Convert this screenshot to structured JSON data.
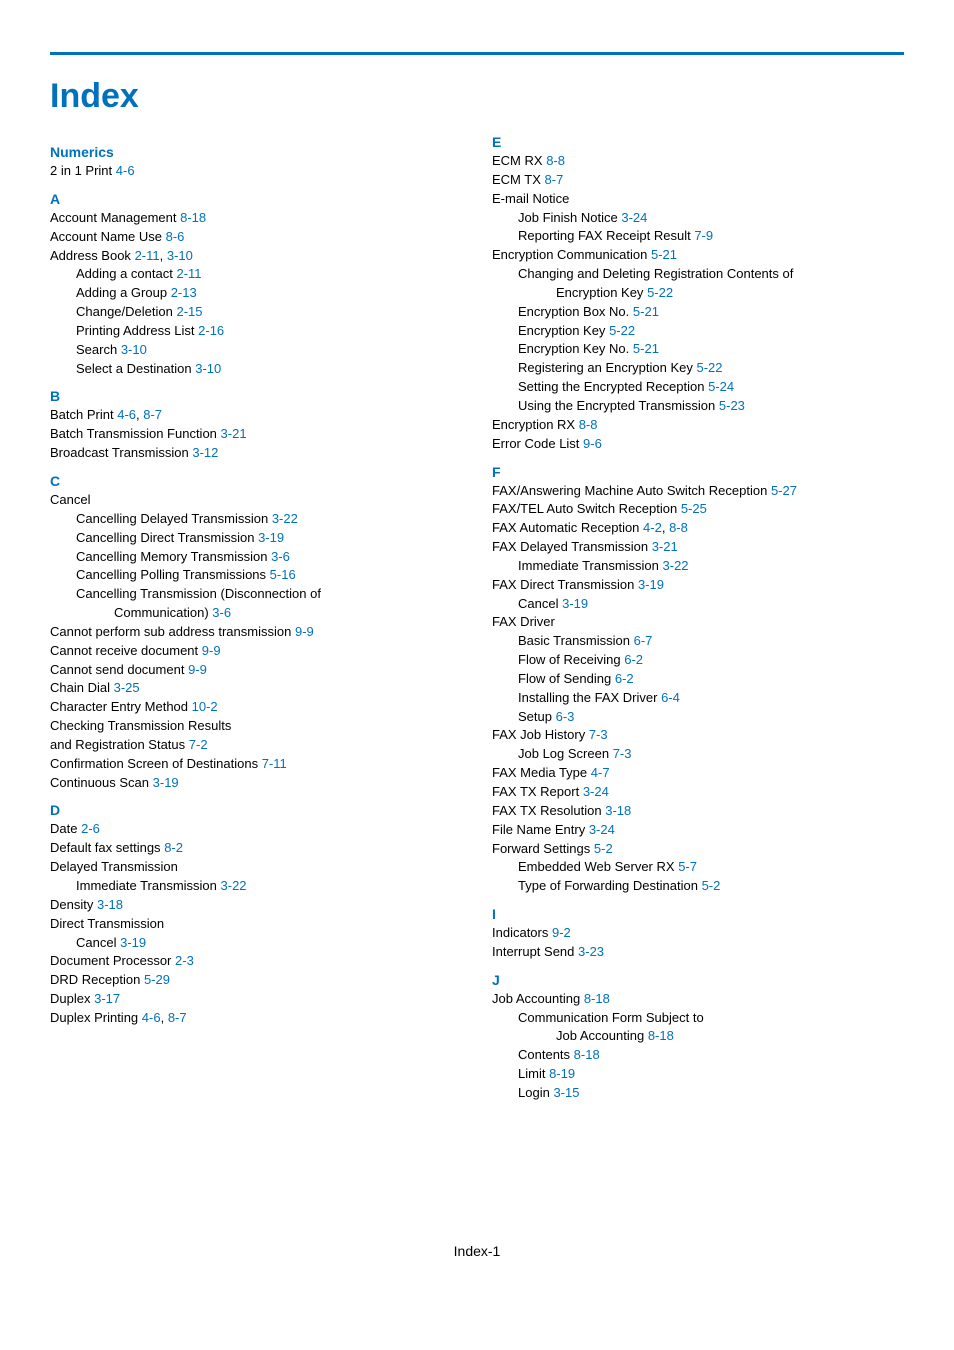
{
  "title": "Index",
  "footer": "Index-1",
  "colors": {
    "accent": "#0071bc",
    "text": "#000000",
    "background": "#ffffff"
  },
  "typography": {
    "base_font": "Arial",
    "base_size_pt": 10,
    "title_size_pt": 26,
    "head_size_pt": 11
  },
  "columns": [
    {
      "sections": [
        {
          "head": "Numerics",
          "entries": [
            {
              "lvl": 0,
              "label": "2 in 1 Print",
              "refs": [
                "4-6"
              ]
            }
          ]
        },
        {
          "head": "A",
          "entries": [
            {
              "lvl": 0,
              "label": "Account Management",
              "refs": [
                "8-18"
              ]
            },
            {
              "lvl": 0,
              "label": "Account Name Use",
              "refs": [
                "8-6"
              ]
            },
            {
              "lvl": 0,
              "label": "Address Book",
              "refs": [
                "2-11",
                "3-10"
              ]
            },
            {
              "lvl": 1,
              "label": "Adding a contact",
              "refs": [
                "2-11"
              ]
            },
            {
              "lvl": 1,
              "label": "Adding a Group",
              "refs": [
                "2-13"
              ]
            },
            {
              "lvl": 1,
              "label": "Change/Deletion",
              "refs": [
                "2-15"
              ]
            },
            {
              "lvl": 1,
              "label": "Printing Address List",
              "refs": [
                "2-16"
              ]
            },
            {
              "lvl": 1,
              "label": "Search",
              "refs": [
                "3-10"
              ]
            },
            {
              "lvl": 1,
              "label": "Select a Destination",
              "refs": [
                "3-10"
              ]
            }
          ]
        },
        {
          "head": "B",
          "entries": [
            {
              "lvl": 0,
              "label": "Batch Print",
              "refs": [
                "4-6",
                "8-7"
              ]
            },
            {
              "lvl": 0,
              "label": "Batch Transmission Function",
              "refs": [
                "3-21"
              ]
            },
            {
              "lvl": 0,
              "label": "Broadcast Transmission",
              "refs": [
                "3-12"
              ]
            }
          ]
        },
        {
          "head": "C",
          "entries": [
            {
              "lvl": 0,
              "label": "Cancel",
              "refs": []
            },
            {
              "lvl": 1,
              "label": "Cancelling Delayed Transmission",
              "refs": [
                "3-22"
              ]
            },
            {
              "lvl": 1,
              "label": "Cancelling Direct Transmission",
              "refs": [
                "3-19"
              ]
            },
            {
              "lvl": 1,
              "label": "Cancelling Memory Transmission",
              "refs": [
                "3-6"
              ]
            },
            {
              "lvl": 1,
              "label": "Cancelling Polling Transmissions",
              "refs": [
                "5-16"
              ]
            },
            {
              "lvl": 1,
              "label": "Cancelling Transmission (Disconnection of",
              "refs": []
            },
            {
              "lvl": 2,
              "label": "Communication)",
              "refs": [
                "3-6"
              ]
            },
            {
              "lvl": 0,
              "label": "Cannot perform sub address transmission",
              "refs": [
                "9-9"
              ]
            },
            {
              "lvl": 0,
              "label": "Cannot receive document",
              "refs": [
                "9-9"
              ]
            },
            {
              "lvl": 0,
              "label": "Cannot send document",
              "refs": [
                "9-9"
              ]
            },
            {
              "lvl": 0,
              "label": "Chain Dial",
              "refs": [
                "3-25"
              ]
            },
            {
              "lvl": 0,
              "label": "Character Entry Method",
              "refs": [
                "10-2"
              ]
            },
            {
              "lvl": 0,
              "label": "Checking Transmission Results",
              "refs": []
            },
            {
              "lvl": 0,
              "label": "and Registration Status",
              "refs": [
                "7-2"
              ]
            },
            {
              "lvl": 0,
              "label": "Confirmation Screen of Destinations",
              "refs": [
                "7-11"
              ]
            },
            {
              "lvl": 0,
              "label": "Continuous Scan",
              "refs": [
                "3-19"
              ]
            }
          ]
        },
        {
          "head": "D",
          "entries": [
            {
              "lvl": 0,
              "label": "Date",
              "refs": [
                "2-6"
              ]
            },
            {
              "lvl": 0,
              "label": "Default fax settings",
              "refs": [
                "8-2"
              ]
            },
            {
              "lvl": 0,
              "label": "Delayed Transmission",
              "refs": []
            },
            {
              "lvl": 1,
              "label": "Immediate Transmission",
              "refs": [
                "3-22"
              ]
            },
            {
              "lvl": 0,
              "label": "Density",
              "refs": [
                "3-18"
              ]
            },
            {
              "lvl": 0,
              "label": "Direct Transmission",
              "refs": []
            },
            {
              "lvl": 1,
              "label": "Cancel",
              "refs": [
                "3-19"
              ]
            },
            {
              "lvl": 0,
              "label": "Document Processor",
              "refs": [
                "2-3"
              ]
            },
            {
              "lvl": 0,
              "label": "DRD Reception",
              "refs": [
                "5-29"
              ]
            },
            {
              "lvl": 0,
              "label": "Duplex",
              "refs": [
                "3-17"
              ]
            },
            {
              "lvl": 0,
              "label": "Duplex Printing",
              "refs": [
                "4-6",
                "8-7"
              ]
            }
          ]
        }
      ]
    },
    {
      "sections": [
        {
          "head": "E",
          "entries": [
            {
              "lvl": 0,
              "label": "ECM RX",
              "refs": [
                "8-8"
              ]
            },
            {
              "lvl": 0,
              "label": "ECM TX",
              "refs": [
                "8-7"
              ]
            },
            {
              "lvl": 0,
              "label": "E-mail Notice",
              "refs": []
            },
            {
              "lvl": 1,
              "label": "Job Finish Notice",
              "refs": [
                "3-24"
              ]
            },
            {
              "lvl": 1,
              "label": "Reporting FAX Receipt Result",
              "refs": [
                "7-9"
              ]
            },
            {
              "lvl": 0,
              "label": "Encryption Communication",
              "refs": [
                "5-21"
              ]
            },
            {
              "lvl": 1,
              "label": "Changing and Deleting Registration Contents of",
              "refs": []
            },
            {
              "lvl": 2,
              "label": "Encryption Key",
              "refs": [
                "5-22"
              ]
            },
            {
              "lvl": 1,
              "label": "Encryption Box No.",
              "refs": [
                "5-21"
              ]
            },
            {
              "lvl": 1,
              "label": "Encryption Key",
              "refs": [
                "5-22"
              ]
            },
            {
              "lvl": 1,
              "label": "Encryption Key No.",
              "refs": [
                "5-21"
              ]
            },
            {
              "lvl": 1,
              "label": "Registering an Encryption Key",
              "refs": [
                "5-22"
              ]
            },
            {
              "lvl": 1,
              "label": "Setting the Encrypted Reception",
              "refs": [
                "5-24"
              ]
            },
            {
              "lvl": 1,
              "label": "Using the Encrypted Transmission",
              "refs": [
                "5-23"
              ]
            },
            {
              "lvl": 0,
              "label": "Encryption RX",
              "refs": [
                "8-8"
              ]
            },
            {
              "lvl": 0,
              "label": "Error Code List",
              "refs": [
                "9-6"
              ]
            }
          ]
        },
        {
          "head": "F",
          "entries": [
            {
              "lvl": 0,
              "label": "FAX/Answering Machine Auto Switch Reception",
              "refs": [
                "5-27"
              ]
            },
            {
              "lvl": 0,
              "label": "FAX/TEL Auto Switch Reception",
              "refs": [
                "5-25"
              ]
            },
            {
              "lvl": 0,
              "label": "FAX Automatic Reception",
              "refs": [
                "4-2",
                "8-8"
              ]
            },
            {
              "lvl": 0,
              "label": "FAX Delayed Transmission",
              "refs": [
                "3-21"
              ]
            },
            {
              "lvl": 1,
              "label": "Immediate Transmission",
              "refs": [
                "3-22"
              ]
            },
            {
              "lvl": 0,
              "label": "FAX Direct Transmission",
              "refs": [
                "3-19"
              ]
            },
            {
              "lvl": 1,
              "label": "Cancel",
              "refs": [
                "3-19"
              ]
            },
            {
              "lvl": 0,
              "label": "FAX Driver",
              "refs": []
            },
            {
              "lvl": 1,
              "label": "Basic Transmission",
              "refs": [
                "6-7"
              ]
            },
            {
              "lvl": 1,
              "label": "Flow of Receiving",
              "refs": [
                "6-2"
              ]
            },
            {
              "lvl": 1,
              "label": "Flow of Sending",
              "refs": [
                "6-2"
              ]
            },
            {
              "lvl": 1,
              "label": "Installing the FAX Driver",
              "refs": [
                "6-4"
              ]
            },
            {
              "lvl": 1,
              "label": "Setup",
              "refs": [
                "6-3"
              ]
            },
            {
              "lvl": 0,
              "label": "FAX Job History",
              "refs": [
                "7-3"
              ]
            },
            {
              "lvl": 1,
              "label": "Job Log Screen",
              "refs": [
                "7-3"
              ]
            },
            {
              "lvl": 0,
              "label": "FAX Media Type",
              "refs": [
                "4-7"
              ]
            },
            {
              "lvl": 0,
              "label": "FAX TX Report",
              "refs": [
                "3-24"
              ]
            },
            {
              "lvl": 0,
              "label": "FAX TX Resolution",
              "refs": [
                "3-18"
              ]
            },
            {
              "lvl": 0,
              "label": "File Name Entry",
              "refs": [
                "3-24"
              ]
            },
            {
              "lvl": 0,
              "label": "Forward Settings",
              "refs": [
                "5-2"
              ]
            },
            {
              "lvl": 1,
              "label": "Embedded Web Server RX",
              "refs": [
                "5-7"
              ]
            },
            {
              "lvl": 1,
              "label": "Type of Forwarding Destination",
              "refs": [
                "5-2"
              ]
            }
          ]
        },
        {
          "head": "I",
          "entries": [
            {
              "lvl": 0,
              "label": "Indicators",
              "refs": [
                "9-2"
              ]
            },
            {
              "lvl": 0,
              "label": "Interrupt Send",
              "refs": [
                "3-23"
              ]
            }
          ]
        },
        {
          "head": "J",
          "entries": [
            {
              "lvl": 0,
              "label": "Job Accounting",
              "refs": [
                "8-18"
              ]
            },
            {
              "lvl": 1,
              "label": "Communication Form Subject to",
              "refs": []
            },
            {
              "lvl": 2,
              "label": "Job Accounting",
              "refs": [
                "8-18"
              ]
            },
            {
              "lvl": 1,
              "label": "Contents",
              "refs": [
                "8-18"
              ]
            },
            {
              "lvl": 1,
              "label": "Limit",
              "refs": [
                "8-19"
              ]
            },
            {
              "lvl": 1,
              "label": "Login",
              "refs": [
                "3-15"
              ]
            }
          ]
        }
      ]
    }
  ]
}
